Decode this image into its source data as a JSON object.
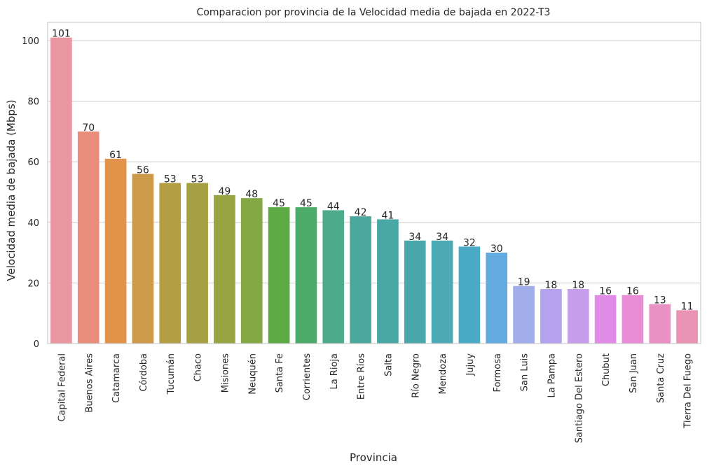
{
  "chart_data": {
    "type": "bar",
    "title": "Comparacion por provincia de la Velocidad media de bajada en 2022-T3",
    "xlabel": "Provincia",
    "ylabel": "Velocidad media de bajada (Mbps)",
    "ylim": [
      0,
      106
    ],
    "yticks": [
      0,
      20,
      40,
      60,
      80,
      100
    ],
    "grid": "horizontal",
    "categories": [
      "Capital Federal",
      "Buenos Aires",
      "Catamarca",
      "Córdoba",
      "Tucumán",
      "Chaco",
      "Misiones",
      "Neuquén",
      "Santa Fe",
      "Corrientes",
      "La Rioja",
      "Entre Ríos",
      "Salta",
      "Río Negro",
      "Mendoza",
      "Jujuy",
      "Formosa",
      "San Luis",
      "La Pampa",
      "Santiago Del Estero",
      "Chubut",
      "San Juan",
      "Santa Cruz",
      "Tierra Del Fuego"
    ],
    "values": [
      101,
      70,
      61,
      56,
      53,
      53,
      49,
      48,
      45,
      45,
      44,
      42,
      41,
      34,
      34,
      32,
      30,
      19,
      18,
      18,
      16,
      16,
      13,
      11
    ],
    "value_labels": [
      "101",
      "70",
      "61",
      "56",
      "53",
      "53",
      "49",
      "48",
      "45",
      "45",
      "44",
      "42",
      "41",
      "34",
      "34",
      "32",
      "30",
      "19",
      "18",
      "18",
      "16",
      "16",
      "13",
      "11"
    ],
    "colors": [
      "#ea96a2",
      "#e98d7d",
      "#e19349",
      "#cc9a48",
      "#b49e44",
      "#a5a043",
      "#97a442",
      "#84a843",
      "#5eab46",
      "#4dab69",
      "#4dab8c",
      "#4aa99c",
      "#4aa8a4",
      "#4aa8ab",
      "#4baab4",
      "#4cabc4",
      "#63abdf",
      "#a1aee9",
      "#b5a2ee",
      "#c79eeb",
      "#e08ce6",
      "#e88dd5",
      "#ea91c3",
      "#ea92b4"
    ]
  }
}
